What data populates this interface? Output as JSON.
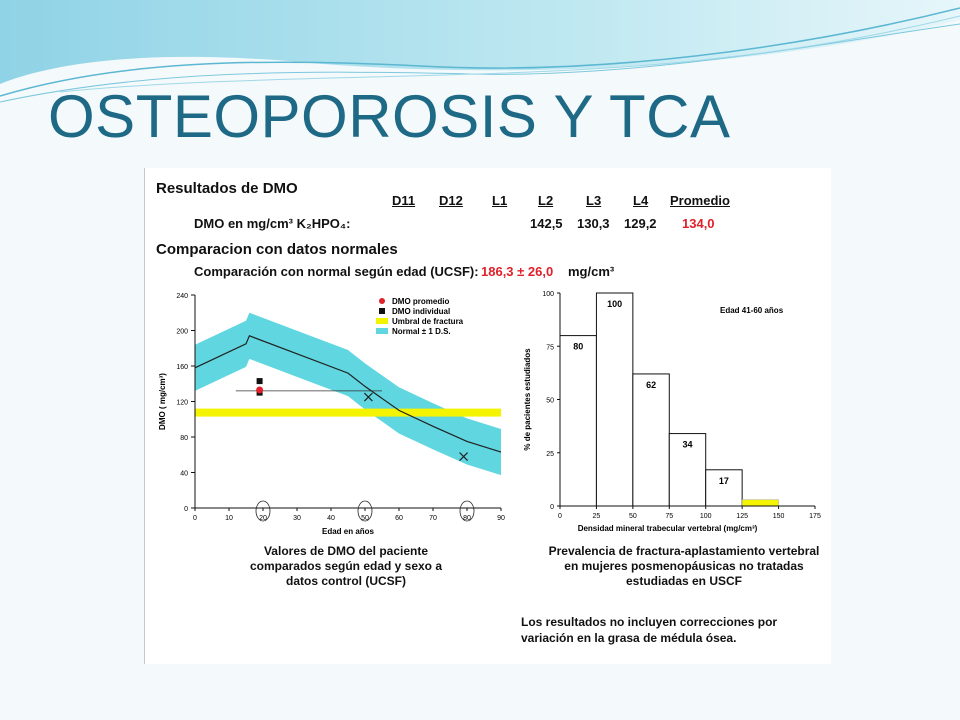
{
  "slide": {
    "title": "OSTEOPOROSIS Y TCA"
  },
  "report": {
    "heading": "Resultados de DMO",
    "columns": [
      "D11",
      "D12",
      "L1",
      "L2",
      "L3",
      "L4",
      "Promedio"
    ],
    "dmo_label": "DMO en mg/cm³ K₂HPO₄:",
    "dmo_values": {
      "L2": "142,5",
      "L3": "130,3",
      "L4": "129,2",
      "Promedio": "134,0"
    },
    "comparison_heading": "Comparacion con datos normales",
    "comparison_label": "Comparación con normal según edad (UCSF):",
    "comparison_value": "186,3 ± 26,0",
    "comparison_unit": "mg/cm³",
    "left_caption": "Valores de DMO del paciente comparados según edad y sexo a datos control (UCSF)",
    "right_caption": "Prevalencia de fractura-aplastamiento vertebral en mujeres posmenopáusicas no tratadas estudiadas en USCF",
    "note": "Los resultados no incluyen correcciones por variación en la grasa de médula ósea.",
    "colors": {
      "band": "#5fd6e0",
      "threshold": "#f4f400",
      "average": "#e0202a",
      "individual": "#111111"
    }
  },
  "chart_data": [
    {
      "type": "line",
      "ylabel": "DMO ( mg/cm³)",
      "xlabel": "Edad en años",
      "xlim": [
        0,
        90
      ],
      "ylim": [
        0,
        240
      ],
      "xticks": [
        0,
        10,
        20,
        30,
        40,
        50,
        60,
        70,
        80,
        90
      ],
      "yticks": [
        0,
        40,
        80,
        120,
        160,
        200,
        240
      ],
      "circled_ticks": [
        20,
        50,
        80
      ],
      "legend": [
        "DMO promedio",
        "DMO individual",
        "Umbral de fractura",
        "Normal ± 1 D.S."
      ],
      "normal_mean": [
        [
          0,
          158
        ],
        [
          15,
          185
        ],
        [
          16,
          194
        ],
        [
          45,
          152
        ],
        [
          50,
          137
        ],
        [
          60,
          110
        ],
        [
          70,
          92
        ],
        [
          80,
          75
        ],
        [
          90,
          63
        ]
      ],
      "normal_sd": 26,
      "threshold": {
        "y1": 103,
        "y2": 112
      },
      "reference_line": {
        "x": [
          12,
          55
        ],
        "y": 132
      },
      "average_points": [
        [
          19,
          133
        ]
      ],
      "individual_points": [
        [
          19,
          143
        ],
        [
          19,
          130
        ]
      ],
      "x_markers": [
        [
          51,
          125
        ],
        [
          79,
          58
        ]
      ]
    },
    {
      "type": "bar",
      "ylabel": "% de pacientes estudiados",
      "xlabel": "Densidad mineral trabecular vertebral (mg/cm³)",
      "xlim": [
        0,
        175
      ],
      "ylim": [
        0,
        100
      ],
      "xticks": [
        0,
        25,
        50,
        75,
        100,
        125,
        150,
        175
      ],
      "yticks": [
        0,
        25,
        50,
        75,
        100
      ],
      "annotation": "Edad 41-60 años",
      "bins": [
        {
          "from": 0,
          "to": 25,
          "value": 80,
          "label": "80"
        },
        {
          "from": 25,
          "to": 50,
          "value": 100,
          "label": "100"
        },
        {
          "from": 50,
          "to": 75,
          "value": 62,
          "label": "62"
        },
        {
          "from": 75,
          "to": 100,
          "value": 34,
          "label": "34"
        },
        {
          "from": 100,
          "to": 125,
          "value": 17,
          "label": "17"
        }
      ],
      "patient_bin": {
        "from": 125,
        "to": 150,
        "value": 3
      }
    }
  ]
}
